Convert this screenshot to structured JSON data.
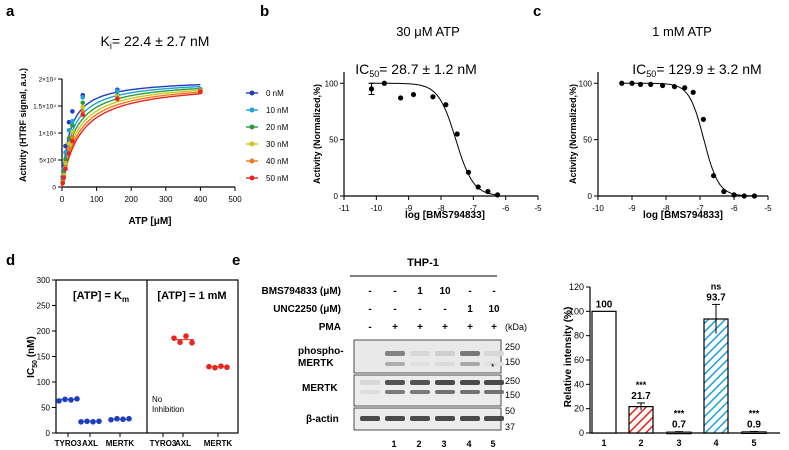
{
  "panel_labels": {
    "a": "a",
    "b": "b",
    "c": "c",
    "d": "d",
    "e": "e"
  },
  "chart_data": [
    {
      "id": "a",
      "type": "line",
      "title_main": "K",
      "title_sub": "i",
      "title_rest": "= 22.4 ± 2.7 nM",
      "xlabel": "ATP [μM]",
      "ylabel": "Activity (HTRF signal, a.u.)",
      "xlim": [
        0,
        500
      ],
      "ylim": [
        0,
        20000
      ],
      "xticks": [
        0,
        100,
        200,
        300,
        400,
        500
      ],
      "yticks": [
        0,
        5000,
        10000,
        15000,
        20000
      ],
      "ytick_labels": [
        "0",
        "5×10³",
        "1×10⁴",
        "1.5×10⁴",
        "2×10⁴"
      ],
      "x": [
        2,
        5,
        10,
        20,
        30,
        60,
        160,
        400
      ],
      "series": [
        {
          "name": "0 nM",
          "color": "#1f3fbf",
          "vmax": 20000,
          "km": 22,
          "values": [
            1900,
            4200,
            7600,
            12000,
            14000,
            17000,
            18000,
            17800
          ]
        },
        {
          "name": "10 nM",
          "color": "#1aa3d9",
          "vmax": 19900,
          "km": 28,
          "values": [
            1400,
            3400,
            6400,
            10500,
            12200,
            16600,
            17800,
            18100
          ]
        },
        {
          "name": "20 nM",
          "color": "#2e9a3e",
          "vmax": 19800,
          "km": 34,
          "values": [
            1100,
            2700,
            5100,
            9000,
            11400,
            15600,
            17000,
            18000
          ]
        },
        {
          "name": "30 nM",
          "color": "#c8c81e",
          "vmax": 19700,
          "km": 40,
          "values": [
            900,
            2200,
            4400,
            8000,
            10200,
            14800,
            16800,
            17700
          ]
        },
        {
          "name": "40 nM",
          "color": "#f07a1e",
          "vmax": 19600,
          "km": 46,
          "values": [
            800,
            1900,
            3700,
            7100,
            9200,
            14000,
            16500,
            17900
          ]
        },
        {
          "name": "50 nM",
          "color": "#e8251f",
          "vmax": 19500,
          "km": 52,
          "values": [
            700,
            1700,
            3300,
            6200,
            8500,
            13400,
            16300,
            17600
          ]
        }
      ]
    },
    {
      "id": "b",
      "type": "scatter",
      "header": "30 μM ATP",
      "ic50_main": "IC",
      "ic50_sub": "50",
      "ic50_rest": "= 28.7 ± 1.2 nM",
      "xlabel": "log [BMS794833]",
      "ylabel": "Activity (Normalized,%)",
      "xlim": [
        -11,
        -5
      ],
      "ylim": [
        0,
        110
      ],
      "xticks": [
        -11,
        -10,
        -9,
        -8,
        -7,
        -6,
        -5
      ],
      "yticks": [
        0,
        50,
        100
      ],
      "x": [
        -10.15,
        -9.75,
        -9.25,
        -8.85,
        -8.25,
        -7.85,
        -7.5,
        -7.15,
        -6.85,
        -6.55,
        -6.25
      ],
      "y": [
        95,
        100,
        87,
        90,
        88,
        81,
        55,
        21,
        8,
        4,
        1
      ],
      "error": [
        5,
        1,
        0,
        1,
        0,
        1,
        1,
        1,
        0,
        0,
        0
      ],
      "fit": {
        "top": 100,
        "bottom": 0,
        "log_ic50": -7.542,
        "hill": 1.6
      }
    },
    {
      "id": "c",
      "type": "scatter",
      "header": "1 mM ATP",
      "ic50_main": "IC",
      "ic50_sub": "50",
      "ic50_rest": "= 129.9 ± 3.2 nM",
      "xlabel": "log [BMS794833]",
      "ylabel": "Activity (Normalized,%)",
      "xlim": [
        -10,
        -5
      ],
      "ylim": [
        0,
        110
      ],
      "xticks": [
        -10,
        -9,
        -8,
        -7,
        -6,
        -5
      ],
      "yticks": [
        0,
        50,
        100
      ],
      "x": [
        -9.3,
        -9.0,
        -8.75,
        -8.45,
        -8.1,
        -7.75,
        -7.45,
        -7.2,
        -6.9,
        -6.6,
        -6.3,
        -6.0,
        -5.7,
        -5.4
      ],
      "y": [
        100,
        100,
        99,
        99,
        98,
        97,
        96,
        92,
        68,
        18,
        4,
        1,
        0,
        0
      ],
      "fit": {
        "top": 100,
        "bottom": 0,
        "log_ic50": -6.886,
        "hill": 2.0
      }
    },
    {
      "id": "d",
      "type": "scatter",
      "ylabel_main": "IC",
      "ylabel_sub": "50",
      "ylabel_rest": " (nM)",
      "ylim": [
        0,
        300
      ],
      "yticks": [
        0,
        50,
        100,
        150,
        200,
        250,
        300
      ],
      "panels": [
        {
          "title_main": "[ATP] = K",
          "title_sub": "m",
          "categories": [
            "TYRO3",
            "AXL",
            "MERTK"
          ],
          "color": "#1f3fbf",
          "values": [
            [
              63,
              66,
              65,
              67
            ],
            [
              22,
              23,
              22,
              23
            ],
            [
              26,
              28,
              27,
              28
            ]
          ],
          "medians": [
            66,
            23,
            27
          ],
          "note": ""
        },
        {
          "title_main": "[ATP] = 1 mM",
          "title_sub": "",
          "categories": [
            "TYRO3",
            "AXL",
            "MERTK"
          ],
          "color": "#e8251f",
          "values": [
            null,
            [
              186,
              178,
              190,
              177
            ],
            [
              130,
              128,
              131,
              129
            ]
          ],
          "medians": [
            null,
            183,
            130
          ],
          "note_line1": "No",
          "note_line2": "Inhibition"
        }
      ]
    },
    {
      "id": "e",
      "type": "bar",
      "ylabel": "Relative intensity (%)",
      "ylim": [
        0,
        120
      ],
      "yticks": [
        0,
        20,
        40,
        60,
        80,
        100,
        120
      ],
      "categories": [
        "1",
        "2",
        "3",
        "4",
        "5"
      ],
      "values": [
        100,
        21.7,
        0.7,
        93.7,
        0.9
      ],
      "errors": [
        0,
        3,
        0.4,
        12,
        0.4
      ],
      "value_labels": [
        "100",
        "21.7",
        "0.7",
        "93.7",
        "0.9"
      ],
      "significance": [
        "",
        "***",
        "***",
        "ns",
        "***"
      ],
      "styles": [
        "white",
        "red-hatch",
        "white",
        "blue-hatch",
        "white"
      ]
    }
  ],
  "western_blot": {
    "cell_line": "THP-1",
    "row_labels": [
      "BMS794833 (μM)",
      "UNC2250 (μM)",
      "PMA"
    ],
    "row_values": [
      [
        "-",
        "-",
        "1",
        "10",
        "-",
        "-"
      ],
      [
        "-",
        "-",
        "-",
        "-",
        "1",
        "10"
      ],
      [
        "-",
        "+",
        "+",
        "+",
        "+",
        "+"
      ]
    ],
    "kda_label": "(kDa)",
    "blots": [
      {
        "name": "phospho-",
        "name2": "MERTK",
        "markers": [
          "250",
          "150"
        ],
        "asterisk": "*"
      },
      {
        "name": "MERTK",
        "name2": "",
        "markers": [
          "250",
          "150"
        ]
      },
      {
        "name": "β-actin",
        "name2": "",
        "markers": [
          "50",
          "37"
        ]
      }
    ],
    "lane_numbers": [
      "1",
      "2",
      "3",
      "4",
      "5"
    ],
    "lane_intensity": {
      "phospho": [
        0.0,
        0.55,
        0.1,
        0.15,
        0.6,
        0.1
      ],
      "mertk": [
        0.1,
        0.8,
        0.8,
        0.85,
        0.85,
        0.85
      ],
      "actin": [
        0.85,
        0.85,
        0.85,
        0.85,
        0.85,
        0.85
      ]
    }
  }
}
